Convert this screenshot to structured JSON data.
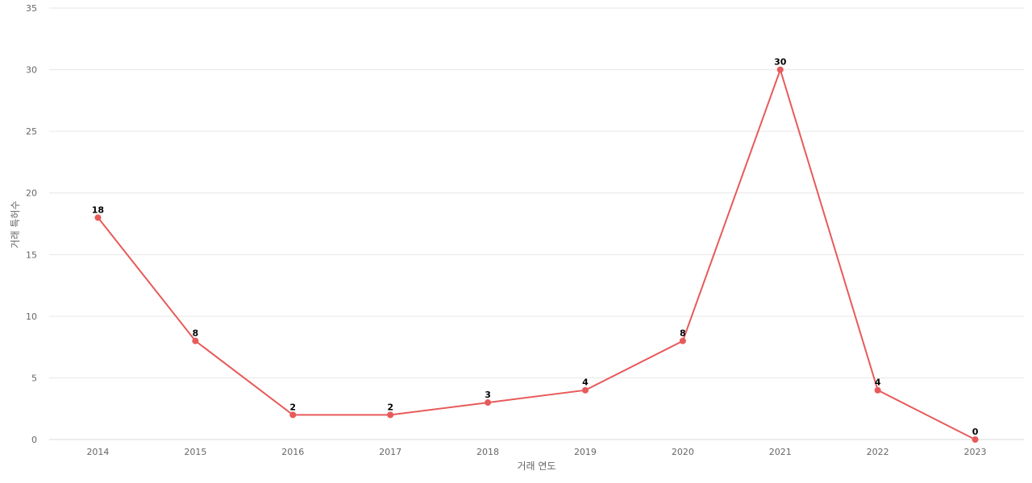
{
  "chart_data": {
    "type": "line",
    "title": "",
    "xlabel": "거래 연도",
    "ylabel": "거래 특허수",
    "categories": [
      "2014",
      "2015",
      "2016",
      "2017",
      "2018",
      "2019",
      "2020",
      "2021",
      "2022",
      "2023"
    ],
    "series": [
      {
        "values": [
          18,
          8,
          2,
          2,
          3,
          4,
          8,
          30,
          4,
          0
        ]
      }
    ],
    "ylim": [
      0,
      35
    ],
    "yticks": [
      0,
      5,
      10,
      15,
      20,
      25,
      30,
      35
    ],
    "grid": true,
    "data_labels": true,
    "line_color": "#e85a5a"
  }
}
